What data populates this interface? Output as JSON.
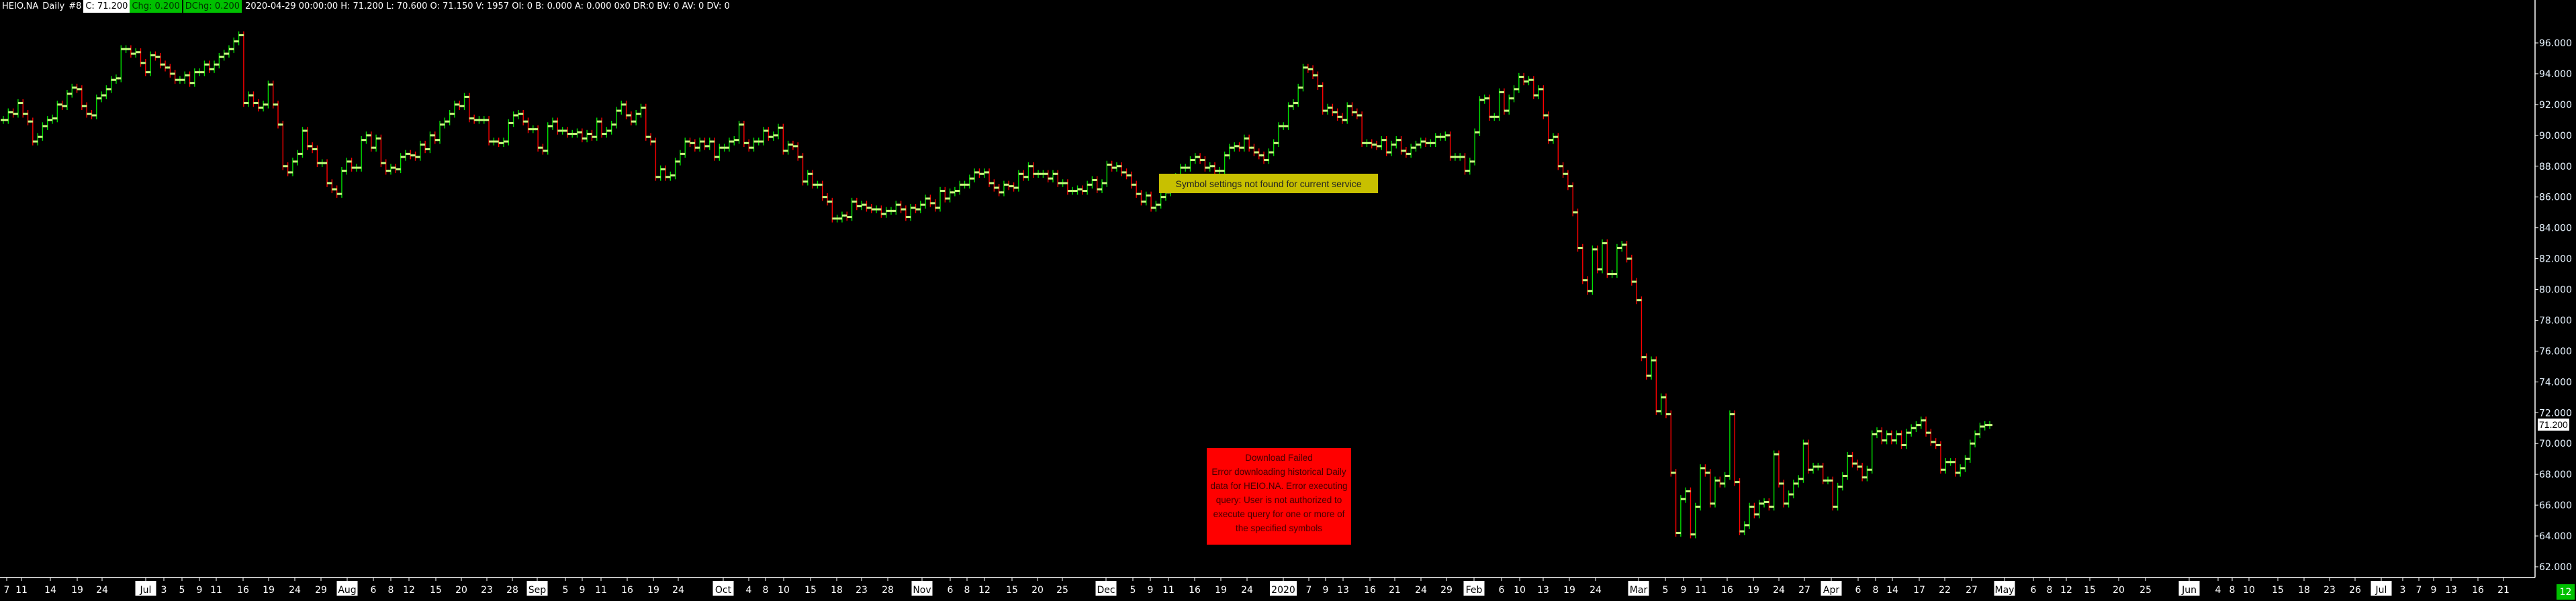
{
  "header": {
    "symbol": "HEIO.NA",
    "interval": "Daily",
    "window_id": "#8",
    "close": "C: 71.200",
    "chg": "Chg: 0.200",
    "dchg": "DChg: 0.200",
    "details": "2020-04-29 00:00:00 H: 71.200 L: 70.600 O: 71.150 V: 1957 OI: 0 B: 0.000 A: 0.000 0x0 DR:0 BV: 0 AV: 0 DV: 0"
  },
  "messages": {
    "symbol_settings": "Symbol settings not found for current service",
    "download_failed_title": "Download Failed",
    "download_failed_body": "Error downloading historical Daily data for HEIO.NA.  Error executing query: User is not authorized to execute query for one or more of the specified symbols"
  },
  "last_price_label": "71.200",
  "page_badge": "12",
  "colors": {
    "up": "#00e000",
    "down": "#ff0000",
    "tick": "#c8ff80",
    "background": "#000000",
    "message": "#c8c000",
    "error": "#ff0000"
  },
  "chart_data": {
    "type": "ohlc-bar",
    "title": "",
    "ylim": [
      61,
      97
    ],
    "y_ticks": [
      "62.000",
      "64.000",
      "66.000",
      "68.000",
      "70.000",
      "72.000",
      "74.000",
      "76.000",
      "78.000",
      "80.000",
      "82.000",
      "84.000",
      "86.000",
      "88.000",
      "90.000",
      "92.000",
      "94.000",
      "96.000"
    ],
    "x_tick_labels": [
      "7",
      "11",
      "14",
      "19",
      "24",
      "Jul",
      "3",
      "5",
      "9",
      "11",
      "16",
      "19",
      "24",
      "29",
      "Aug",
      "6",
      "8",
      "12",
      "15",
      "20",
      "23",
      "28",
      "Sep",
      "5",
      "9",
      "11",
      "16",
      "19",
      "24",
      "Oct",
      "4",
      "8",
      "10",
      "15",
      "18",
      "23",
      "28",
      "Nov",
      "6",
      "8",
      "12",
      "15",
      "20",
      "25",
      "Dec",
      "5",
      "9",
      "11",
      "16",
      "19",
      "24",
      "2020",
      "7",
      "9",
      "13",
      "16",
      "21",
      "24",
      "29",
      "Feb",
      "6",
      "10",
      "13",
      "19",
      "24",
      "Mar",
      "5",
      "9",
      "11",
      "16",
      "19",
      "24",
      "27",
      "Apr",
      "6",
      "8",
      "14",
      "17",
      "22",
      "27",
      "May",
      "6",
      "8",
      "12",
      "15",
      "20",
      "25",
      "Jun",
      "4",
      "8",
      "10",
      "15",
      "18",
      "23",
      "26",
      "Jul",
      "3",
      "7",
      "9",
      "13",
      "16",
      "21"
    ],
    "highlighted_labels": [
      "Jul",
      "Aug",
      "Sep",
      "Oct",
      "Nov",
      "Dec",
      "2020",
      "Feb",
      "Mar",
      "Apr",
      "May",
      "Jun"
    ],
    "close": [
      91.0,
      91.5,
      91.4,
      92.1,
      91.4,
      90.9,
      89.6,
      89.9,
      90.6,
      91.0,
      91.1,
      92.0,
      91.9,
      92.7,
      93.1,
      93.0,
      91.9,
      91.4,
      91.3,
      92.4,
      92.6,
      93.0,
      93.6,
      93.7,
      95.6,
      95.6,
      95.3,
      95.4,
      94.7,
      94.1,
      95.2,
      95.1,
      94.6,
      94.4,
      94.0,
      93.6,
      93.6,
      93.9,
      93.4,
      94.1,
      94.1,
      94.6,
      94.3,
      94.6,
      95.1,
      95.3,
      95.6,
      96.1,
      96.5,
      92.1,
      92.6,
      92.1,
      91.8,
      92.0,
      93.3,
      92.0,
      90.7,
      88.0,
      87.6,
      88.3,
      88.8,
      90.3,
      89.3,
      89.1,
      88.2,
      88.2,
      86.9,
      86.5,
      86.2,
      87.7,
      88.3,
      87.9,
      87.9,
      89.7,
      90.0,
      89.2,
      89.8,
      88.2,
      87.7,
      87.9,
      87.8,
      88.6,
      88.8,
      88.7,
      88.6,
      89.4,
      89.1,
      90.0,
      89.7,
      90.7,
      90.9,
      91.4,
      92.0,
      91.9,
      92.5,
      91.1,
      91.0,
      91.0,
      91.0,
      89.6,
      89.6,
      89.5,
      89.6,
      90.8,
      91.3,
      91.4,
      90.9,
      90.4,
      90.4,
      89.2,
      89.0,
      90.6,
      90.9,
      90.3,
      90.3,
      90.1,
      90.1,
      90.2,
      89.8,
      90.1,
      89.9,
      90.9,
      90.1,
      90.3,
      90.7,
      91.6,
      92.0,
      91.3,
      90.9,
      91.4,
      91.8,
      89.9,
      89.6,
      87.3,
      87.8,
      87.3,
      87.4,
      88.3,
      88.8,
      89.6,
      89.5,
      89.2,
      89.6,
      89.3,
      89.6,
      88.6,
      89.2,
      89.2,
      89.6,
      89.7,
      90.7,
      89.5,
      89.2,
      89.6,
      89.6,
      90.3,
      89.9,
      90.0,
      90.5,
      89.0,
      89.4,
      89.3,
      88.6,
      87.0,
      87.5,
      86.8,
      86.8,
      86.0,
      85.7,
      84.6,
      84.6,
      84.8,
      84.7,
      85.7,
      85.4,
      85.5,
      85.3,
      85.2,
      85.2,
      84.9,
      85.1,
      85.1,
      85.5,
      85.2,
      84.7,
      85.3,
      85.2,
      85.5,
      85.9,
      85.6,
      85.3,
      86.4,
      85.9,
      86.3,
      86.4,
      86.8,
      86.8,
      87.2,
      87.6,
      87.5,
      87.6,
      86.9,
      86.6,
      86.3,
      86.8,
      86.7,
      86.6,
      87.5,
      87.3,
      88.0,
      87.5,
      87.5,
      87.5,
      87.2,
      87.5,
      86.9,
      86.9,
      86.4,
      86.4,
      86.5,
      86.4,
      86.8,
      87.1,
      86.5,
      86.9,
      88.1,
      87.9,
      88.0,
      87.6,
      87.4,
      86.8,
      86.2,
      85.7,
      86.1,
      85.3,
      85.5,
      86.0,
      86.3,
      86.8,
      87.3,
      87.9,
      87.9,
      88.4,
      88.6,
      88.4,
      87.9,
      88.0,
      87.7,
      87.7,
      88.7,
      89.2,
      89.3,
      89.2,
      89.8,
      89.2,
      88.9,
      88.7,
      88.4,
      88.9,
      89.5,
      90.6,
      90.6,
      91.9,
      92.1,
      93.1,
      94.4,
      94.3,
      93.9,
      93.2,
      91.6,
      91.8,
      91.5,
      91.2,
      91.0,
      91.9,
      91.5,
      91.3,
      89.5,
      89.5,
      89.4,
      89.3,
      89.7,
      88.9,
      89.4,
      89.7,
      89.0,
      88.8,
      89.2,
      89.4,
      89.6,
      89.5,
      89.5,
      89.9,
      89.9,
      90.0,
      88.6,
      88.6,
      88.6,
      87.7,
      88.3,
      90.2,
      92.3,
      92.4,
      91.2,
      91.2,
      92.8,
      91.6,
      92.4,
      93.0,
      93.8,
      93.5,
      93.6,
      92.6,
      93.0,
      91.3,
      89.7,
      89.9,
      88.0,
      87.5,
      86.7,
      85.0,
      82.7,
      80.6,
      79.9,
      82.6,
      81.3,
      83.0,
      81.0,
      81.0,
      82.7,
      82.9,
      82.0,
      80.5,
      79.3,
      75.6,
      74.4,
      75.4,
      72.1,
      73.0,
      71.9,
      68.1,
      64.2,
      66.4,
      66.9,
      64.1,
      65.9,
      68.4,
      68.1,
      66.1,
      67.6,
      67.4,
      67.9,
      71.9,
      67.5,
      64.3,
      64.7,
      65.9,
      65.4,
      66.1,
      66.2,
      65.9,
      69.3,
      67.4,
      66.1,
      66.7,
      67.4,
      67.7,
      70.0,
      68.3,
      68.5,
      68.5,
      67.6,
      67.6,
      65.9,
      67.2,
      67.9,
      69.2,
      68.7,
      68.5,
      67.8,
      68.3,
      70.6,
      70.8,
      70.2,
      70.6,
      70.2,
      70.6,
      69.9,
      70.7,
      71.0,
      71.2,
      71.5,
      70.7,
      70.1,
      69.9,
      68.3,
      68.8,
      68.8,
      68.1,
      68.4,
      69.0,
      70.0,
      70.6,
      71.1,
      71.2,
      71.2
    ]
  }
}
